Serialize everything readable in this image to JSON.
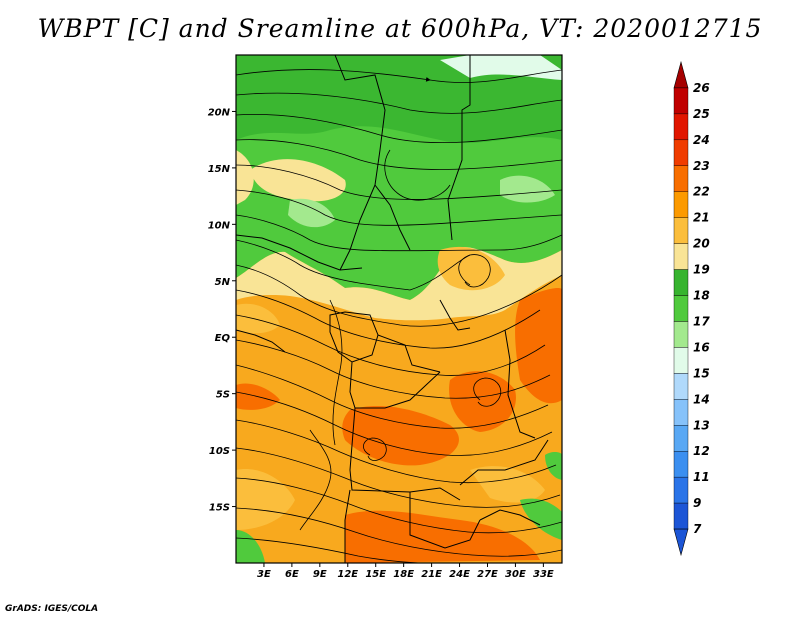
{
  "title": "WBPT [C] and Sreamline at 600hPa, VT: 2020012715",
  "credit": "GrADS: IGES/COLA",
  "map": {
    "lon_range": [
      0,
      35
    ],
    "lat_range": [
      -20,
      25
    ],
    "x_ticks": [
      {
        "value": 3,
        "label": "3E"
      },
      {
        "value": 6,
        "label": "6E"
      },
      {
        "value": 9,
        "label": "9E"
      },
      {
        "value": 12,
        "label": "12E"
      },
      {
        "value": 15,
        "label": "15E"
      },
      {
        "value": 18,
        "label": "18E"
      },
      {
        "value": 21,
        "label": "21E"
      },
      {
        "value": 24,
        "label": "24E"
      },
      {
        "value": 27,
        "label": "27E"
      },
      {
        "value": 30,
        "label": "30E"
      },
      {
        "value": 33,
        "label": "33E"
      }
    ],
    "y_ticks": [
      {
        "value": 20,
        "label": "20N"
      },
      {
        "value": 15,
        "label": "15N"
      },
      {
        "value": 10,
        "label": "10N"
      },
      {
        "value": 5,
        "label": "5N"
      },
      {
        "value": 0,
        "label": "EQ"
      },
      {
        "value": -5,
        "label": "5S"
      },
      {
        "value": -10,
        "label": "10S"
      },
      {
        "value": -15,
        "label": "15S"
      }
    ]
  },
  "colorbar": {
    "levels": [
      {
        "label": "26",
        "color": "#a50000"
      },
      {
        "label": "25",
        "color": "#c00000"
      },
      {
        "label": "24",
        "color": "#e11600"
      },
      {
        "label": "23",
        "color": "#f03c00"
      },
      {
        "label": "22",
        "color": "#f86e00"
      },
      {
        "label": "21",
        "color": "#fc9a00"
      },
      {
        "label": "20",
        "color": "#fbbe3c"
      },
      {
        "label": "19",
        "color": "#f9e496"
      },
      {
        "label": "18",
        "color": "#37b42f"
      },
      {
        "label": "17",
        "color": "#50ca3d"
      },
      {
        "label": "16",
        "color": "#a3e98e"
      },
      {
        "label": "15",
        "color": "#e1fbe9"
      },
      {
        "label": "14",
        "color": "#b0d9fb"
      },
      {
        "label": "13",
        "color": "#86c2fa"
      },
      {
        "label": "12",
        "color": "#59a8f4"
      },
      {
        "label": "11",
        "color": "#3b8ff0"
      },
      {
        "label": "9",
        "color": "#2a74e8"
      },
      {
        "label": "7",
        "color": "#1c55d6"
      }
    ],
    "under_color": "#1c55d6"
  }
}
